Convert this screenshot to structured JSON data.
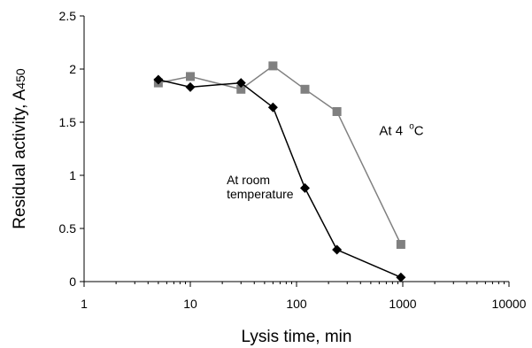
{
  "chart_data": {
    "type": "line",
    "xscale": "log",
    "xlim": [
      1,
      10000
    ],
    "ylim": [
      0,
      2.5
    ],
    "xticks": [
      1,
      10,
      100,
      1000,
      10000
    ],
    "xtick_labels": [
      "1",
      "10",
      "100",
      "1000",
      "10000"
    ],
    "yticks": [
      0,
      0.5,
      1,
      1.5,
      2,
      2.5
    ],
    "ytick_labels": [
      "0",
      "0.5",
      "1",
      "1.5",
      "2",
      "2.5"
    ],
    "xlabel": "Lysis time, min",
    "ylabel_main": "Residual activity, A",
    "ylabel_subscript": "450",
    "grid": false,
    "series": [
      {
        "marker": "square",
        "color": "#808080",
        "x": [
          5,
          10,
          30,
          60,
          120,
          240,
          960
        ],
        "y": [
          1.87,
          1.93,
          1.81,
          2.03,
          1.81,
          1.6,
          0.35
        ]
      },
      {
        "marker": "diamond",
        "color": "#000000",
        "x": [
          5,
          10,
          30,
          60,
          120,
          240,
          960
        ],
        "y": [
          1.9,
          1.83,
          1.87,
          1.64,
          0.88,
          0.3,
          0.04
        ]
      }
    ],
    "annotations": [
      {
        "text": "At 4",
        "superscript": "o",
        "suffix": "C",
        "x": 600,
        "y": 1.38
      },
      {
        "line1": "At room",
        "line2": "temperature",
        "x": 22,
        "y": 1.0
      }
    ]
  }
}
